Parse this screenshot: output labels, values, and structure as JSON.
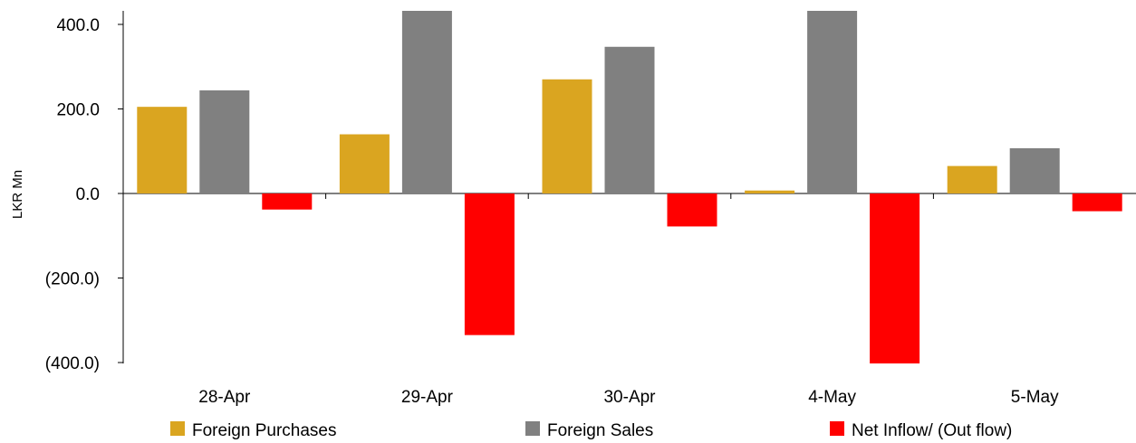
{
  "chart_data": {
    "type": "bar",
    "title": "",
    "xlabel": "",
    "ylabel": "LKR Mn",
    "categories": [
      "28-Apr",
      "29-Apr",
      "30-Apr",
      "4-May",
      "5-May"
    ],
    "series": [
      {
        "name": "Foreign Purchases",
        "color": "#DAA520",
        "values": [
          205,
          140,
          270,
          7,
          65
        ]
      },
      {
        "name": "Foreign Sales",
        "color": "#808080",
        "values": [
          244,
          435,
          347,
          435,
          107
        ]
      },
      {
        "name": "Net Inflow/ (Out flow)",
        "color": "#FF0000",
        "values": [
          -38,
          -335,
          -78,
          -405,
          -42
        ]
      }
    ],
    "ylim": [
      -400,
      435
    ],
    "yticks": [
      400,
      200,
      0,
      -200,
      -400
    ],
    "ytick_labels": [
      "400.0",
      "200.0",
      "0.0",
      "(200.0)",
      "(400.0)"
    ],
    "grid": false,
    "legend_position": "bottom"
  }
}
